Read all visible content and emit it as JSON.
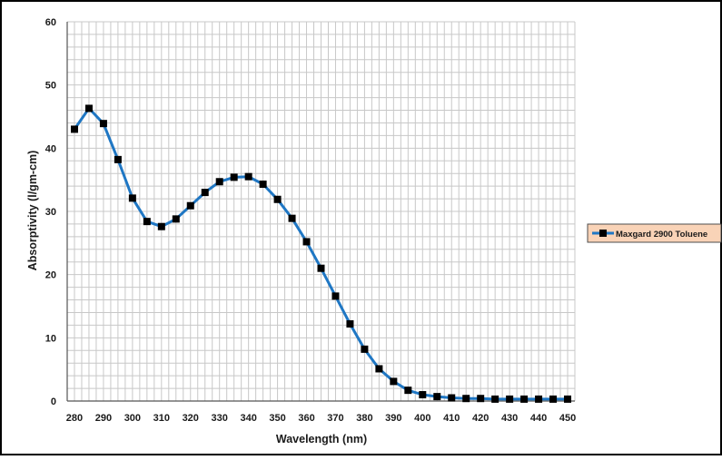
{
  "chart_data": {
    "type": "line",
    "title": "",
    "xlabel": "Wavelength (nm)",
    "ylabel": "Absorptivity (l/gm-cm)",
    "xlim": [
      277.5,
      452.5
    ],
    "ylim": [
      0,
      60
    ],
    "x_ticks": [
      280,
      290,
      300,
      310,
      320,
      330,
      340,
      350,
      360,
      370,
      380,
      390,
      400,
      410,
      420,
      430,
      440,
      450
    ],
    "y_ticks": [
      0,
      10,
      20,
      30,
      40,
      50,
      60
    ],
    "grid": true,
    "legend_position": "right",
    "series": [
      {
        "name": "Maxgard 2900 Toluene",
        "color": "#1f77c4",
        "marker": "square",
        "marker_color": "#000000",
        "x": [
          280,
          285,
          290,
          295,
          300,
          305,
          310,
          315,
          320,
          325,
          330,
          335,
          340,
          345,
          350,
          355,
          360,
          365,
          370,
          375,
          380,
          385,
          390,
          395,
          400,
          405,
          410,
          415,
          420,
          425,
          430,
          435,
          440,
          445,
          450
        ],
        "values": [
          43.0,
          46.3,
          43.9,
          38.2,
          32.1,
          28.4,
          27.6,
          28.8,
          30.9,
          33.0,
          34.7,
          35.4,
          35.5,
          34.3,
          31.9,
          28.9,
          25.2,
          21.0,
          16.6,
          12.2,
          8.2,
          5.1,
          3.1,
          1.7,
          1.0,
          0.7,
          0.5,
          0.4,
          0.4,
          0.3,
          0.3,
          0.3,
          0.3,
          0.3,
          0.3
        ]
      }
    ]
  },
  "colors": {
    "frame_border": "#000000",
    "grid": "#c8c8c8",
    "legend_fill": "#f9d3b7",
    "legend_border": "#4d4d4d"
  }
}
